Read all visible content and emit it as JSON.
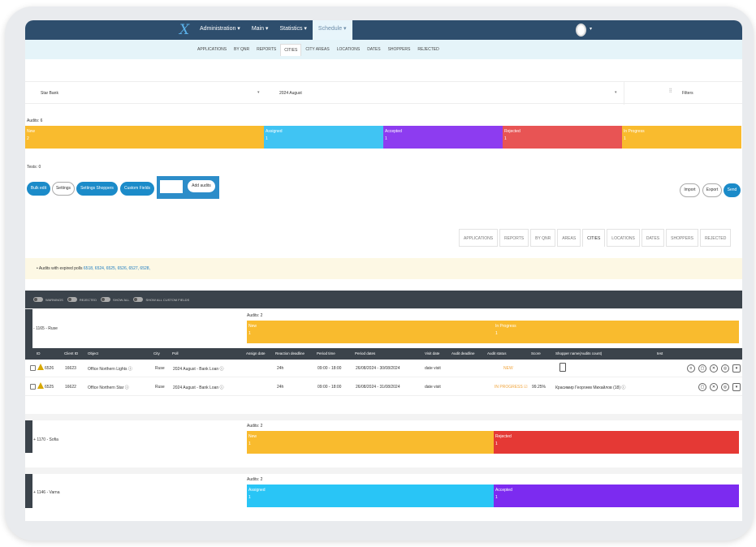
{
  "topnav": {
    "logo": "X",
    "items": [
      {
        "label": "Administration ▾"
      },
      {
        "label": "Main ▾"
      },
      {
        "label": "Statistics ▾"
      },
      {
        "label": "Schedule ▾"
      }
    ],
    "user_drop": "▾"
  },
  "subnav": [
    "APPLICATIONS",
    "BY QNR",
    "REPORTS",
    "CITIES",
    "CITY AREAS",
    "LOCATIONS",
    "DATES",
    "SHOPPERS",
    "REJECTED"
  ],
  "filters": {
    "client": "Star Bank",
    "period": "2024 August",
    "chev": "▾",
    "filters_label": "Filters",
    "filters_icon": "⫶⫶"
  },
  "audits_label": "Audits: 6",
  "status": [
    {
      "label": "New",
      "count": "2",
      "color": "#f9bb2e",
      "share": 0.333
    },
    {
      "label": "Assigned",
      "count": "1",
      "color": "#40c4f3",
      "share": 0.167
    },
    {
      "label": "Accepted",
      "count": "1",
      "color": "#8d3cf0",
      "share": 0.167
    },
    {
      "label": "Rejected",
      "count": "1",
      "color": "#e85454",
      "share": 0.167
    },
    {
      "label": "In Progress",
      "count": "1",
      "color": "#f9bb2e",
      "share": 0.166
    }
  ],
  "tests_label": "Tests: 0",
  "actions": {
    "bulk_edit": "Bulk edit",
    "settings": "Settings",
    "settings_shoppers": "Settings Shoppers",
    "custom_fields": "Custom Fields",
    "add_audits": "Add audits",
    "import": "Import",
    "export": "Export",
    "send": "Send"
  },
  "tabs2": [
    "APPLICATIONS",
    "REPORTS",
    "BY QNR",
    "AREAS",
    "CITIES",
    "LOCATIONS",
    "DATES",
    "SHOPPERS",
    "REJECTED"
  ],
  "expired": {
    "text": "Audits with expired polls",
    "ids": "6518, 6524, 6525, 6526, 6527, 6528,"
  },
  "toggles": [
    "WARNINGS",
    "REJECTED",
    "SHOW ALL",
    "SHOW ALL CUSTOM FIELDS"
  ],
  "groups": [
    {
      "name": "1165 - Ruse",
      "toggle": "-",
      "count": "Audits: 2",
      "segs": [
        {
          "label": "New",
          "n": "1",
          "color": "#f9bb2e"
        },
        {
          "label": "In Progress",
          "n": "1",
          "color": "#f9bb2e"
        }
      ]
    },
    {
      "name": "1170 - Sofia",
      "toggle": "+",
      "count": "Audits: 2",
      "segs": [
        {
          "label": "New",
          "n": "1",
          "color": "#f9bb2e"
        },
        {
          "label": "Rejected",
          "n": "1",
          "color": "#e53935"
        }
      ]
    },
    {
      "name": "1146 - Varna",
      "toggle": "+",
      "count": "Audits: 2",
      "segs": [
        {
          "label": "Assigned",
          "n": "1",
          "color": "#29c5f6"
        },
        {
          "label": "Accepted",
          "n": "1",
          "color": "#7c2bf0"
        }
      ]
    }
  ],
  "columns": [
    "ID",
    "Client ID",
    "Object",
    "City",
    "Poll",
    "Assign date",
    "Reaction deadline",
    "Period time",
    "Period dates",
    "Visit date",
    "Audit deadline",
    "Audit status",
    "Score",
    "Shopper name(Audits count)",
    "test"
  ],
  "rows": [
    {
      "id": "6526",
      "client_id": "16623",
      "object": "Office Northern Lights ⓘ",
      "city": "Ruse",
      "poll": "2024 August - Bank Loan ⓘ",
      "reaction": "24h",
      "time": "09:00 - 18:00",
      "dates": "26/08/2024 - 30/08/2024",
      "visit": "date visit",
      "status": "NEW",
      "score": "",
      "shopper": "",
      "status_color": "#f0a33a"
    },
    {
      "id": "6525",
      "client_id": "16622",
      "object": "Office Northern Star ⓘ",
      "city": "Ruse",
      "poll": "2024 August - Bank Loan ⓘ",
      "reaction": "24h",
      "time": "09:00 - 18:00",
      "dates": "26/08/2024 - 31/08/2024",
      "visit": "date visit",
      "status": "IN PROGRESS ☑",
      "score": "99.25%",
      "shopper": "Красимир Георгиев Михайлов (18) ⓘ",
      "status_color": "#f0a33a"
    }
  ]
}
